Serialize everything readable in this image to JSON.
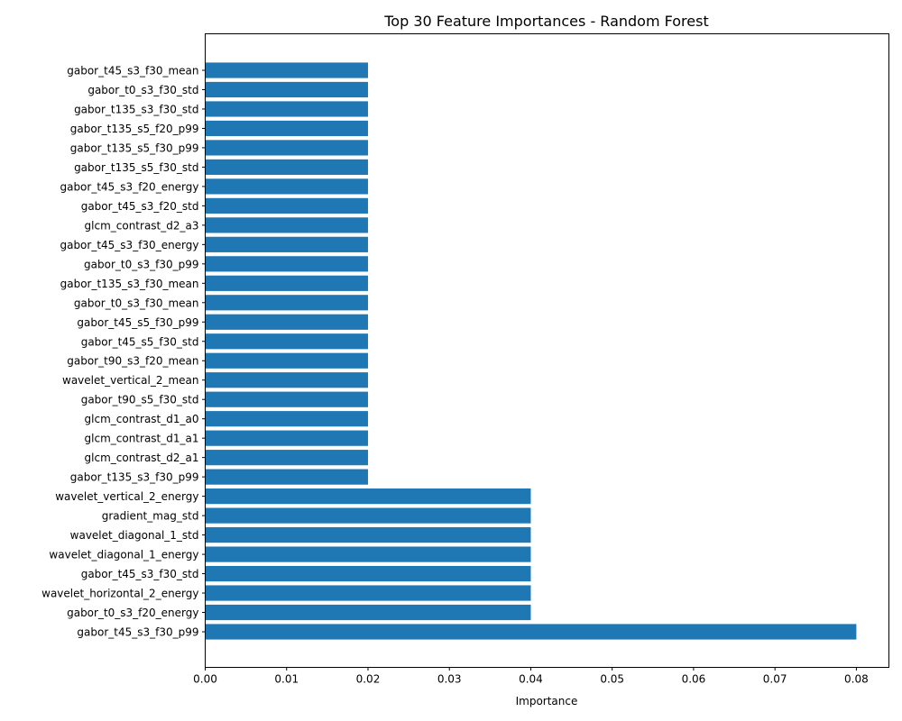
{
  "chart_data": {
    "type": "bar",
    "orientation": "horizontal",
    "title": "Top 30 Feature Importances - Random Forest",
    "xlabel": "Importance",
    "ylabel": "",
    "xlim": [
      0,
      0.084
    ],
    "xticks": [
      "0.00",
      "0.01",
      "0.02",
      "0.03",
      "0.04",
      "0.05",
      "0.06",
      "0.07",
      "0.08"
    ],
    "grid": false,
    "legend": "none",
    "bar_color": "#1f77b4",
    "categories": [
      "gabor_t45_s3_f30_mean",
      "gabor_t0_s3_f30_std",
      "gabor_t135_s3_f30_std",
      "gabor_t135_s5_f20_p99",
      "gabor_t135_s5_f30_p99",
      "gabor_t135_s5_f30_std",
      "gabor_t45_s3_f20_energy",
      "gabor_t45_s3_f20_std",
      "glcm_contrast_d2_a3",
      "gabor_t45_s3_f30_energy",
      "gabor_t0_s3_f30_p99",
      "gabor_t135_s3_f30_mean",
      "gabor_t0_s3_f30_mean",
      "gabor_t45_s5_f30_p99",
      "gabor_t45_s5_f30_std",
      "gabor_t90_s3_f20_mean",
      "wavelet_vertical_2_mean",
      "gabor_t90_s5_f30_std",
      "glcm_contrast_d1_a0",
      "glcm_contrast_d1_a1",
      "glcm_contrast_d2_a1",
      "gabor_t135_s3_f30_p99",
      "wavelet_vertical_2_energy",
      "gradient_mag_std",
      "wavelet_diagonal_1_std",
      "wavelet_diagonal_1_energy",
      "gabor_t45_s3_f30_std",
      "wavelet_horizontal_2_energy",
      "gabor_t0_s3_f20_energy",
      "gabor_t45_s3_f30_p99"
    ],
    "values": [
      0.02,
      0.02,
      0.02,
      0.02,
      0.02,
      0.02,
      0.02,
      0.02,
      0.02,
      0.02,
      0.02,
      0.02,
      0.02,
      0.02,
      0.02,
      0.02,
      0.02,
      0.02,
      0.02,
      0.02,
      0.02,
      0.02,
      0.04,
      0.04,
      0.04,
      0.04,
      0.04,
      0.04,
      0.04,
      0.08
    ]
  }
}
